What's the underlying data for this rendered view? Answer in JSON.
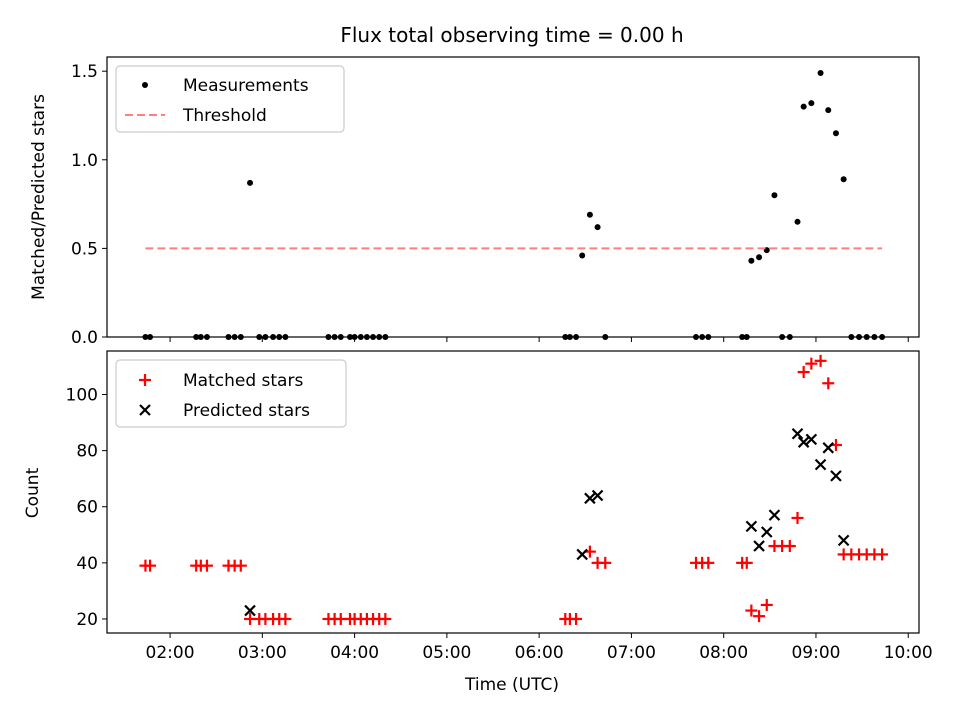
{
  "chart_data": [
    {
      "type": "scatter",
      "title": "Flux total observing time = 0.00 h",
      "ylabel": "Matched/Predicted stars",
      "xlim": [
        "01:19",
        "10:07"
      ],
      "ylim": [
        0,
        1.58
      ],
      "yticks": [
        0.0,
        0.5,
        1.0,
        1.5
      ],
      "ytick_labels": [
        "0.0",
        "0.5",
        "1.0",
        "1.5"
      ],
      "grid": false,
      "legend_position": "top-left",
      "series": [
        {
          "name": "Measurements",
          "marker": "dot",
          "color": "#000000",
          "points": [
            [
              "01:44",
              0
            ],
            [
              "01:47",
              0
            ],
            [
              "02:17",
              0
            ],
            [
              "02:20",
              0
            ],
            [
              "02:24",
              0
            ],
            [
              "02:38",
              0
            ],
            [
              "02:42",
              0
            ],
            [
              "02:46",
              0
            ],
            [
              "02:52",
              0.87
            ],
            [
              "02:58",
              0
            ],
            [
              "03:02",
              0
            ],
            [
              "03:07",
              0
            ],
            [
              "03:11",
              0
            ],
            [
              "03:15",
              0
            ],
            [
              "03:43",
              0
            ],
            [
              "03:47",
              0
            ],
            [
              "03:51",
              0
            ],
            [
              "03:57",
              0
            ],
            [
              "04:00",
              0
            ],
            [
              "04:04",
              0
            ],
            [
              "04:08",
              0
            ],
            [
              "04:12",
              0
            ],
            [
              "04:16",
              0
            ],
            [
              "04:20",
              0
            ],
            [
              "06:17",
              0
            ],
            [
              "06:20",
              0
            ],
            [
              "06:24",
              0
            ],
            [
              "06:28",
              0.46
            ],
            [
              "06:33",
              0.69
            ],
            [
              "06:38",
              0.62
            ],
            [
              "06:43",
              0
            ],
            [
              "07:42",
              0
            ],
            [
              "07:46",
              0
            ],
            [
              "07:50",
              0
            ],
            [
              "08:12",
              0
            ],
            [
              "08:15",
              0
            ],
            [
              "08:18",
              0.43
            ],
            [
              "08:23",
              0.45
            ],
            [
              "08:28",
              0.49
            ],
            [
              "08:33",
              0.8
            ],
            [
              "08:38",
              0
            ],
            [
              "08:43",
              0
            ],
            [
              "08:48",
              0.65
            ],
            [
              "08:52",
              1.3
            ],
            [
              "08:57",
              1.32
            ],
            [
              "09:03",
              1.49
            ],
            [
              "09:08",
              1.28
            ],
            [
              "09:13",
              1.15
            ],
            [
              "09:18",
              0.89
            ],
            [
              "09:23",
              0
            ],
            [
              "09:28",
              0
            ],
            [
              "09:33",
              0
            ],
            [
              "09:38",
              0
            ],
            [
              "09:43",
              0
            ]
          ]
        },
        {
          "name": "Threshold",
          "marker": "dashed-line",
          "color": "#ff7f7f",
          "points": [
            [
              "01:44",
              0.5
            ],
            [
              "09:43",
              0.5
            ]
          ]
        }
      ]
    },
    {
      "type": "scatter",
      "xlabel": "Time (UTC)",
      "ylabel": "Count",
      "xlim": [
        "01:19",
        "10:07"
      ],
      "ylim": [
        15,
        115.5
      ],
      "xticks": [
        "02:00",
        "03:00",
        "04:00",
        "05:00",
        "06:00",
        "07:00",
        "08:00",
        "09:00",
        "10:00"
      ],
      "yticks": [
        20,
        40,
        60,
        80,
        100
      ],
      "ytick_labels": [
        "20",
        "40",
        "60",
        "80",
        "100"
      ],
      "grid": false,
      "legend_position": "top-left",
      "series": [
        {
          "name": "Matched stars",
          "marker": "plus",
          "color": "#ff0000",
          "points": [
            [
              "01:44",
              39
            ],
            [
              "01:47",
              39
            ],
            [
              "02:17",
              39
            ],
            [
              "02:20",
              39
            ],
            [
              "02:24",
              39
            ],
            [
              "02:38",
              39
            ],
            [
              "02:42",
              39
            ],
            [
              "02:46",
              39
            ],
            [
              "02:52",
              20
            ],
            [
              "02:58",
              20
            ],
            [
              "03:02",
              20
            ],
            [
              "03:07",
              20
            ],
            [
              "03:11",
              20
            ],
            [
              "03:15",
              20
            ],
            [
              "03:43",
              20
            ],
            [
              "03:47",
              20
            ],
            [
              "03:51",
              20
            ],
            [
              "03:57",
              20
            ],
            [
              "04:00",
              20
            ],
            [
              "04:04",
              20
            ],
            [
              "04:08",
              20
            ],
            [
              "04:12",
              20
            ],
            [
              "04:16",
              20
            ],
            [
              "04:20",
              20
            ],
            [
              "06:17",
              20
            ],
            [
              "06:20",
              20
            ],
            [
              "06:24",
              20
            ],
            [
              "06:33",
              44
            ],
            [
              "06:38",
              40
            ],
            [
              "06:43",
              40
            ],
            [
              "07:42",
              40
            ],
            [
              "07:46",
              40
            ],
            [
              "07:50",
              40
            ],
            [
              "08:12",
              40
            ],
            [
              "08:15",
              40
            ],
            [
              "08:18",
              23
            ],
            [
              "08:23",
              21
            ],
            [
              "08:28",
              25
            ],
            [
              "08:33",
              46
            ],
            [
              "08:38",
              46
            ],
            [
              "08:43",
              46
            ],
            [
              "08:48",
              56
            ],
            [
              "08:52",
              108
            ],
            [
              "08:57",
              111
            ],
            [
              "09:03",
              112
            ],
            [
              "09:08",
              104
            ],
            [
              "09:13",
              82
            ],
            [
              "09:18",
              43
            ],
            [
              "09:23",
              43
            ],
            [
              "09:28",
              43
            ],
            [
              "09:33",
              43
            ],
            [
              "09:38",
              43
            ],
            [
              "09:43",
              43
            ]
          ]
        },
        {
          "name": "Predicted stars",
          "marker": "x",
          "color": "#000000",
          "points": [
            [
              "02:52",
              23
            ],
            [
              "06:28",
              43
            ],
            [
              "06:33",
              63
            ],
            [
              "06:38",
              64
            ],
            [
              "08:18",
              53
            ],
            [
              "08:23",
              46
            ],
            [
              "08:28",
              51
            ],
            [
              "08:33",
              57
            ],
            [
              "08:48",
              86
            ],
            [
              "08:52",
              83
            ],
            [
              "08:57",
              84
            ],
            [
              "09:03",
              75
            ],
            [
              "09:08",
              81
            ],
            [
              "09:13",
              71
            ],
            [
              "09:18",
              48
            ]
          ]
        }
      ]
    }
  ]
}
